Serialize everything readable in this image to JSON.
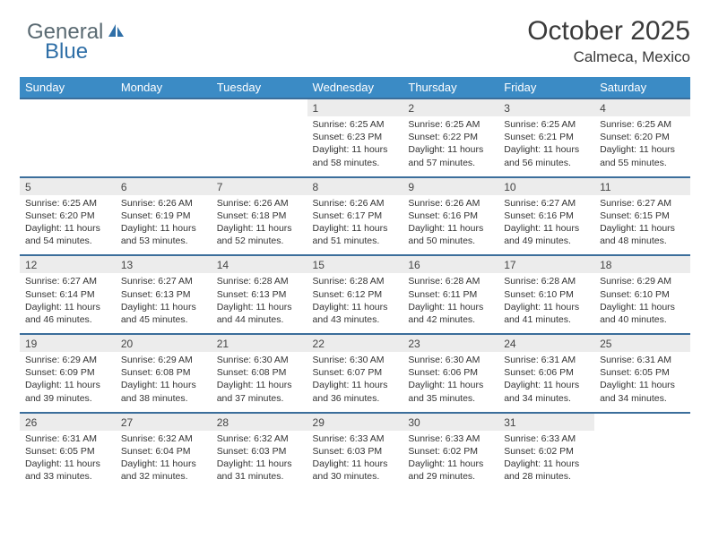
{
  "logo": {
    "word1": "General",
    "word2": "Blue"
  },
  "header": {
    "month_title": "October 2025",
    "location": "Calmeca, Mexico"
  },
  "style": {
    "header_bg": "#3b8bc5",
    "header_fg": "#ffffff",
    "daynum_bg": "#ececec",
    "row_border": "#3b6e9b",
    "text_color": "#333333",
    "logo_gray": "#5a6a72",
    "logo_blue": "#2f6fa7",
    "title_fontsize": 30,
    "location_fontsize": 17,
    "dayhead_fontsize": 13,
    "cell_fontsize": 10.5
  },
  "calendar": {
    "day_labels": [
      "Sunday",
      "Monday",
      "Tuesday",
      "Wednesday",
      "Thursday",
      "Friday",
      "Saturday"
    ],
    "weeks": [
      {
        "nums": [
          "",
          "",
          "",
          "1",
          "2",
          "3",
          "4"
        ],
        "info": [
          "",
          "",
          "",
          "Sunrise: 6:25 AM\nSunset: 6:23 PM\nDaylight: 11 hours and 58 minutes.",
          "Sunrise: 6:25 AM\nSunset: 6:22 PM\nDaylight: 11 hours and 57 minutes.",
          "Sunrise: 6:25 AM\nSunset: 6:21 PM\nDaylight: 11 hours and 56 minutes.",
          "Sunrise: 6:25 AM\nSunset: 6:20 PM\nDaylight: 11 hours and 55 minutes."
        ]
      },
      {
        "nums": [
          "5",
          "6",
          "7",
          "8",
          "9",
          "10",
          "11"
        ],
        "info": [
          "Sunrise: 6:25 AM\nSunset: 6:20 PM\nDaylight: 11 hours and 54 minutes.",
          "Sunrise: 6:26 AM\nSunset: 6:19 PM\nDaylight: 11 hours and 53 minutes.",
          "Sunrise: 6:26 AM\nSunset: 6:18 PM\nDaylight: 11 hours and 52 minutes.",
          "Sunrise: 6:26 AM\nSunset: 6:17 PM\nDaylight: 11 hours and 51 minutes.",
          "Sunrise: 6:26 AM\nSunset: 6:16 PM\nDaylight: 11 hours and 50 minutes.",
          "Sunrise: 6:27 AM\nSunset: 6:16 PM\nDaylight: 11 hours and 49 minutes.",
          "Sunrise: 6:27 AM\nSunset: 6:15 PM\nDaylight: 11 hours and 48 minutes."
        ]
      },
      {
        "nums": [
          "12",
          "13",
          "14",
          "15",
          "16",
          "17",
          "18"
        ],
        "info": [
          "Sunrise: 6:27 AM\nSunset: 6:14 PM\nDaylight: 11 hours and 46 minutes.",
          "Sunrise: 6:27 AM\nSunset: 6:13 PM\nDaylight: 11 hours and 45 minutes.",
          "Sunrise: 6:28 AM\nSunset: 6:13 PM\nDaylight: 11 hours and 44 minutes.",
          "Sunrise: 6:28 AM\nSunset: 6:12 PM\nDaylight: 11 hours and 43 minutes.",
          "Sunrise: 6:28 AM\nSunset: 6:11 PM\nDaylight: 11 hours and 42 minutes.",
          "Sunrise: 6:28 AM\nSunset: 6:10 PM\nDaylight: 11 hours and 41 minutes.",
          "Sunrise: 6:29 AM\nSunset: 6:10 PM\nDaylight: 11 hours and 40 minutes."
        ]
      },
      {
        "nums": [
          "19",
          "20",
          "21",
          "22",
          "23",
          "24",
          "25"
        ],
        "info": [
          "Sunrise: 6:29 AM\nSunset: 6:09 PM\nDaylight: 11 hours and 39 minutes.",
          "Sunrise: 6:29 AM\nSunset: 6:08 PM\nDaylight: 11 hours and 38 minutes.",
          "Sunrise: 6:30 AM\nSunset: 6:08 PM\nDaylight: 11 hours and 37 minutes.",
          "Sunrise: 6:30 AM\nSunset: 6:07 PM\nDaylight: 11 hours and 36 minutes.",
          "Sunrise: 6:30 AM\nSunset: 6:06 PM\nDaylight: 11 hours and 35 minutes.",
          "Sunrise: 6:31 AM\nSunset: 6:06 PM\nDaylight: 11 hours and 34 minutes.",
          "Sunrise: 6:31 AM\nSunset: 6:05 PM\nDaylight: 11 hours and 34 minutes."
        ]
      },
      {
        "nums": [
          "26",
          "27",
          "28",
          "29",
          "30",
          "31",
          ""
        ],
        "info": [
          "Sunrise: 6:31 AM\nSunset: 6:05 PM\nDaylight: 11 hours and 33 minutes.",
          "Sunrise: 6:32 AM\nSunset: 6:04 PM\nDaylight: 11 hours and 32 minutes.",
          "Sunrise: 6:32 AM\nSunset: 6:03 PM\nDaylight: 11 hours and 31 minutes.",
          "Sunrise: 6:33 AM\nSunset: 6:03 PM\nDaylight: 11 hours and 30 minutes.",
          "Sunrise: 6:33 AM\nSunset: 6:02 PM\nDaylight: 11 hours and 29 minutes.",
          "Sunrise: 6:33 AM\nSunset: 6:02 PM\nDaylight: 11 hours and 28 minutes.",
          ""
        ]
      }
    ]
  }
}
